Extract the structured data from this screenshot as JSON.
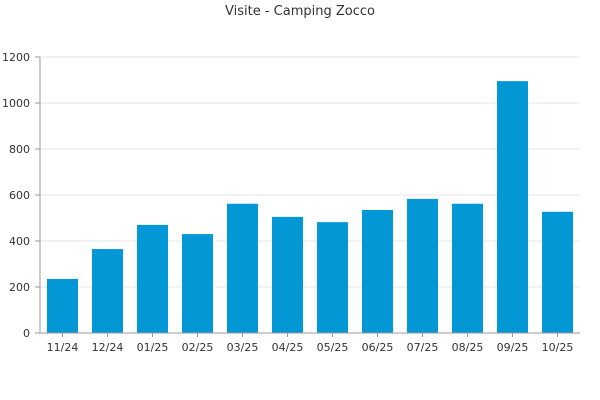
{
  "chart_data": {
    "type": "bar",
    "title": "Visite - Camping Zocco",
    "categories": [
      "11/24",
      "12/24",
      "01/25",
      "02/25",
      "03/25",
      "04/25",
      "05/25",
      "06/25",
      "07/25",
      "08/25",
      "09/25",
      "10/25"
    ],
    "values": [
      235,
      365,
      470,
      430,
      562,
      505,
      482,
      535,
      583,
      562,
      1095,
      527
    ],
    "xlabel": "",
    "ylabel": "",
    "ylim": [
      0,
      1200
    ],
    "yticks": [
      0,
      200,
      400,
      600,
      800,
      1000,
      1200
    ],
    "grid": true,
    "bar_color": "#0397d6"
  }
}
